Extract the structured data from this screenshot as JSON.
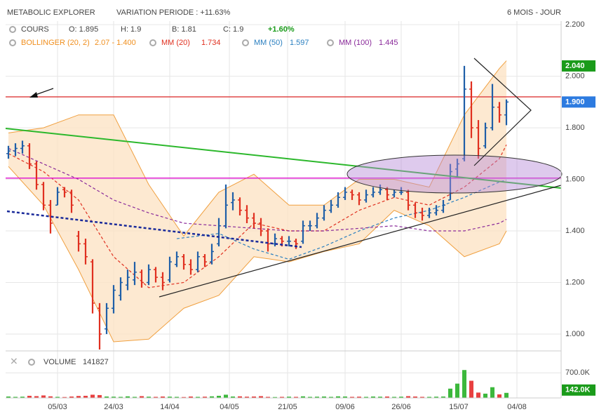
{
  "chart_data": {
    "type": "ohlc",
    "title": "METABOLIC EXPLORER",
    "subtitle": "VARIATION PERIODE : +11.63%",
    "period": "6 MOIS - JOUR",
    "legend": {
      "cours": "COURS",
      "open": "O: 1.895",
      "high": "H: 1.9",
      "low": "B: 1.81",
      "close": "C: 1.9",
      "change": "+1.60%",
      "bollinger": "BOLLINGER (20, 2)",
      "bollinger_value": "2.07 - 1.400",
      "mm20": "MM (20)",
      "mm20_value": "1.734",
      "mm50": "MM (50)",
      "mm50_value": "1.597",
      "mm100": "MM (100)",
      "mm100_value": "1.445",
      "volume": "VOLUME",
      "volume_value": "141827"
    },
    "up_color": "#1f5fa8",
    "down_color": "#e03020",
    "volume_up_color": "#3cb83c",
    "volume_down_color": "#e84040",
    "xlim": [
      -0.4,
      78.8
    ],
    "xticks": [
      {
        "value": 7,
        "label": "05/03"
      },
      {
        "value": 15,
        "label": "24/03"
      },
      {
        "value": 23,
        "label": "14/04"
      },
      {
        "value": 31.5,
        "label": "04/05"
      },
      {
        "value": 39.8,
        "label": "21/05"
      },
      {
        "value": 48,
        "label": "09/06"
      },
      {
        "value": 56,
        "label": "26/06"
      },
      {
        "value": 64.2,
        "label": "15/07"
      },
      {
        "value": 72.5,
        "label": "04/08"
      }
    ],
    "ylim": [
      0.94,
      2.214
    ],
    "yticks": [
      {
        "value": 1.0,
        "label": "1.000"
      },
      {
        "value": 1.2,
        "label": "1.200"
      },
      {
        "value": 1.4,
        "label": "1.400"
      },
      {
        "value": 1.6,
        "label": "1.600"
      },
      {
        "value": 1.8,
        "label": "1.800"
      },
      {
        "value": 2.0,
        "label": "2.000"
      },
      {
        "value": 2.2,
        "label": "2.200"
      }
    ],
    "grid": true,
    "bars": [
      [
        1.7,
        1.73,
        1.68,
        1.71
      ],
      [
        1.71,
        1.74,
        1.69,
        1.72
      ],
      [
        1.72,
        1.75,
        1.7,
        1.73
      ],
      [
        1.73,
        1.74,
        1.64,
        1.66
      ],
      [
        1.66,
        1.67,
        1.56,
        1.58
      ],
      [
        1.58,
        1.59,
        1.48,
        1.5
      ],
      [
        1.5,
        1.52,
        1.39,
        1.43
      ],
      [
        1.5,
        1.57,
        1.5,
        1.55
      ],
      [
        1.56,
        1.57,
        1.53,
        1.55
      ],
      [
        1.55,
        1.56,
        1.47,
        1.5
      ],
      [
        1.38,
        1.4,
        1.32,
        1.35
      ],
      [
        1.35,
        1.37,
        1.27,
        1.3
      ],
      [
        1.28,
        1.29,
        1.08,
        1.12
      ],
      [
        1.1,
        1.12,
        0.94,
        1.0
      ],
      [
        1.02,
        1.12,
        1.0,
        1.1
      ],
      [
        1.1,
        1.19,
        1.08,
        1.17
      ],
      [
        1.15,
        1.22,
        1.13,
        1.2
      ],
      [
        1.19,
        1.25,
        1.17,
        1.22
      ],
      [
        1.21,
        1.28,
        1.19,
        1.24
      ],
      [
        1.24,
        1.25,
        1.18,
        1.2
      ],
      [
        1.2,
        1.27,
        1.19,
        1.25
      ],
      [
        1.25,
        1.26,
        1.2,
        1.22
      ],
      [
        1.22,
        1.24,
        1.17,
        1.2
      ],
      [
        1.21,
        1.3,
        1.2,
        1.28
      ],
      [
        1.27,
        1.32,
        1.26,
        1.3
      ],
      [
        1.3,
        1.31,
        1.25,
        1.27
      ],
      [
        1.27,
        1.29,
        1.23,
        1.25
      ],
      [
        1.25,
        1.32,
        1.24,
        1.3
      ],
      [
        1.3,
        1.31,
        1.26,
        1.28
      ],
      [
        1.28,
        1.35,
        1.27,
        1.32
      ],
      [
        1.35,
        1.45,
        1.34,
        1.42
      ],
      [
        1.42,
        1.58,
        1.41,
        1.5
      ],
      [
        1.51,
        1.55,
        1.48,
        1.52
      ],
      [
        1.52,
        1.53,
        1.46,
        1.48
      ],
      [
        1.48,
        1.5,
        1.43,
        1.45
      ],
      [
        1.45,
        1.47,
        1.41,
        1.43
      ],
      [
        1.43,
        1.45,
        1.38,
        1.4
      ],
      [
        1.4,
        1.41,
        1.32,
        1.35
      ],
      [
        1.35,
        1.39,
        1.34,
        1.37
      ],
      [
        1.37,
        1.38,
        1.34,
        1.36
      ],
      [
        1.36,
        1.38,
        1.34,
        1.36
      ],
      [
        1.36,
        1.37,
        1.33,
        1.35
      ],
      [
        1.36,
        1.44,
        1.35,
        1.42
      ],
      [
        1.42,
        1.44,
        1.4,
        1.42
      ],
      [
        1.42,
        1.47,
        1.41,
        1.45
      ],
      [
        1.45,
        1.5,
        1.44,
        1.48
      ],
      [
        1.48,
        1.52,
        1.47,
        1.5
      ],
      [
        1.5,
        1.55,
        1.49,
        1.53
      ],
      [
        1.53,
        1.57,
        1.52,
        1.55
      ],
      [
        1.55,
        1.56,
        1.52,
        1.54
      ],
      [
        1.54,
        1.55,
        1.5,
        1.52
      ],
      [
        1.52,
        1.56,
        1.51,
        1.54
      ],
      [
        1.54,
        1.57,
        1.53,
        1.55
      ],
      [
        1.55,
        1.58,
        1.54,
        1.56
      ],
      [
        1.56,
        1.57,
        1.52,
        1.54
      ],
      [
        1.54,
        1.56,
        1.53,
        1.55
      ],
      [
        1.55,
        1.57,
        1.54,
        1.55
      ],
      [
        1.55,
        1.56,
        1.48,
        1.5
      ],
      [
        1.5,
        1.51,
        1.45,
        1.47
      ],
      [
        1.47,
        1.49,
        1.44,
        1.46
      ],
      [
        1.46,
        1.49,
        1.45,
        1.47
      ],
      [
        1.47,
        1.5,
        1.46,
        1.48
      ],
      [
        1.48,
        1.52,
        1.47,
        1.5
      ],
      [
        1.52,
        1.66,
        1.52,
        1.63
      ],
      [
        1.64,
        1.68,
        1.61,
        1.66
      ],
      [
        1.68,
        2.04,
        1.67,
        1.95
      ],
      [
        1.95,
        1.98,
        1.76,
        1.8
      ],
      [
        1.8,
        1.83,
        1.68,
        1.72
      ],
      [
        1.73,
        1.82,
        1.72,
        1.8
      ],
      [
        1.8,
        1.97,
        1.79,
        1.88
      ],
      [
        1.88,
        1.9,
        1.82,
        1.85
      ],
      [
        1.85,
        1.91,
        1.81,
        1.9
      ]
    ],
    "volumes": [
      40000,
      30000,
      35000,
      60000,
      50000,
      70000,
      45000,
      30000,
      25000,
      40000,
      55000,
      60000,
      90000,
      80000,
      40000,
      35000,
      30000,
      45000,
      30000,
      50000,
      35000,
      30000,
      40000,
      35000,
      30000,
      25000,
      40000,
      30000,
      35000,
      45000,
      60000,
      90000,
      40000,
      45000,
      35000,
      40000,
      50000,
      30000,
      25000,
      30000,
      35000,
      30000,
      45000,
      30000,
      35000,
      40000,
      30000,
      45000,
      40000,
      30000,
      35000,
      30000,
      40000,
      35000,
      40000,
      30000,
      35000,
      50000,
      40000,
      30000,
      30000,
      35000,
      40000,
      260000,
      400000,
      780000,
      480000,
      150000,
      120000,
      300000,
      100000,
      142000
    ],
    "vlim": [
      0,
      1000000
    ],
    "vticks": [
      {
        "value": 700000,
        "label": "700.0K"
      }
    ],
    "volume_tag": {
      "value": 142000,
      "label": "142.0K",
      "color": "#1a9b1a"
    },
    "price_tags": [
      {
        "value": 2.04,
        "label": "2.040",
        "color": "#1a9b1a"
      },
      {
        "value": 1.9,
        "label": "1.900",
        "color": "#2d7be0"
      }
    ],
    "levels": [
      {
        "value": 1.92,
        "color": "#e04848"
      },
      {
        "value": 1.605,
        "color": "#e020d0"
      }
    ],
    "bollinger": {
      "color": "#f0a040",
      "fill": "#fde3c6",
      "x": [
        0,
        5,
        10,
        15,
        20,
        25,
        30,
        35,
        40,
        45,
        50,
        55,
        60,
        65,
        70,
        71
      ],
      "upper": [
        1.78,
        1.8,
        1.85,
        1.85,
        1.58,
        1.38,
        1.55,
        1.62,
        1.5,
        1.5,
        1.6,
        1.6,
        1.57,
        1.85,
        2.03,
        2.06
      ],
      "lower": [
        1.65,
        1.5,
        1.25,
        0.97,
        0.98,
        1.1,
        1.15,
        1.3,
        1.28,
        1.32,
        1.35,
        1.48,
        1.42,
        1.3,
        1.35,
        1.4
      ]
    },
    "averages": [
      {
        "color": "#e03020",
        "x": [
          0,
          5,
          10,
          15,
          20,
          25,
          30,
          35,
          40,
          45,
          50,
          55,
          60,
          65,
          70,
          71
        ],
        "values": [
          1.7,
          1.63,
          1.52,
          1.3,
          1.18,
          1.2,
          1.3,
          1.43,
          1.4,
          1.4,
          1.48,
          1.53,
          1.5,
          1.57,
          1.68,
          1.734
        ]
      },
      {
        "color": "#2a7fc0",
        "x": [
          24,
          30,
          35,
          40,
          45,
          50,
          55,
          60,
          65,
          70,
          71
        ],
        "values": [
          1.37,
          1.39,
          1.33,
          1.29,
          1.34,
          1.4,
          1.45,
          1.48,
          1.53,
          1.59,
          1.597
        ]
      },
      {
        "color": "#8a2a9a",
        "x": [
          0,
          5,
          10,
          15,
          20,
          25,
          30,
          35,
          40,
          45,
          50,
          55,
          60,
          65,
          70,
          71
        ],
        "values": [
          1.72,
          1.66,
          1.6,
          1.52,
          1.47,
          1.43,
          1.42,
          1.41,
          1.4,
          1.4,
          1.41,
          1.42,
          1.4,
          1.4,
          1.43,
          1.445
        ]
      }
    ]
  }
}
